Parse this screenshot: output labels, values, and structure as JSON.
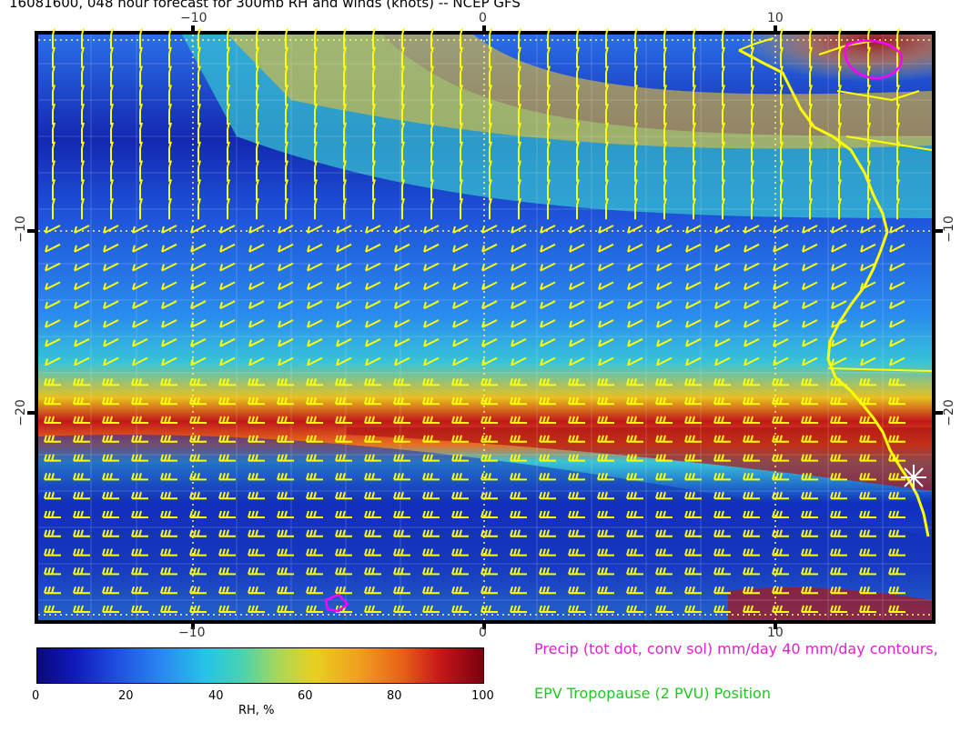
{
  "title": "16081600, 048 hour forecast for 300mb RH and winds (knots) -- NCEP GFS",
  "map": {
    "x_ticks": [
      "−10",
      "0",
      "10"
    ],
    "y_ticks": [
      "−10",
      "−20"
    ],
    "field": "relative humidity",
    "overlays": [
      "wind barbs",
      "coastline",
      "grid lines"
    ],
    "colors": {
      "barbs": "#ffff00",
      "coast": "#ffff00",
      "precip_contour": "#ff00ff",
      "marker": "#ffffff"
    }
  },
  "colorbar": {
    "ticks": [
      "0",
      "20",
      "40",
      "60",
      "80",
      "100"
    ],
    "unit": "RH, %",
    "colors": [
      "#0a0a7a",
      "#1f4fe0",
      "#25c6e6",
      "#e8d020",
      "#e86018",
      "#7a0010"
    ]
  },
  "legend": {
    "precip": "Precip (tot dot, conv sol) mm/day 40 mm/day contours,",
    "epv": "EPV Tropopause (2 PVU) Position"
  }
}
